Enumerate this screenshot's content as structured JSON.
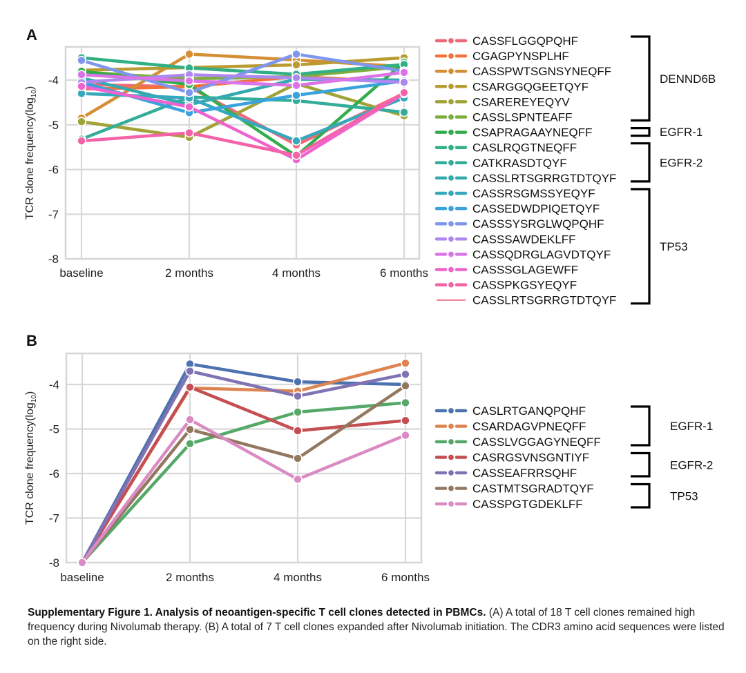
{
  "caption": {
    "bold": "Supplementary Figure 1. Analysis of neoantigen-specific T cell clones detected in PBMCs.",
    "text": " (A) A total of 18 T cell clones remained high frequency during Nivolumab therapy. (B) A total of 7 T cell clones expanded after Nivolumab initiation. The CDR3 amino acid sequences were listed on the right side."
  },
  "chart_data": [
    {
      "panel": "A",
      "type": "line",
      "title": "",
      "xlabel": "",
      "ylabel": "TCR clone frequency(log10)",
      "categories": [
        "baseline",
        "2 months",
        "4 months",
        "6 months"
      ],
      "yticks": [
        -4,
        -5,
        -6,
        -7,
        -8
      ],
      "ylim": [
        -8,
        -3.25
      ],
      "grid": true,
      "legend_position": "right",
      "series": [
        {
          "name": "CASSFLGGQPQHF",
          "color": "#f0697a",
          "group": "DENND6B",
          "values": [
            -4.1,
            -4.15,
            -5.45,
            -4.3
          ]
        },
        {
          "name": "CGAGPYNSPLHF",
          "color": "#f2733a",
          "group": "DENND6B",
          "values": [
            -4.2,
            -4.15,
            -3.92,
            -4.05
          ]
        },
        {
          "name": "CASSPWTSGNSYNEQFF",
          "color": "#d68e35",
          "group": "DENND6B",
          "values": [
            -4.85,
            -3.42,
            -3.55,
            -3.7
          ]
        },
        {
          "name": "CSARGGQGEETQYF",
          "color": "#b99b32",
          "group": "DENND6B",
          "values": [
            -3.78,
            -3.72,
            -3.66,
            -3.5
          ]
        },
        {
          "name": "CSAREREYEQYV",
          "color": "#a1a336",
          "group": "DENND6B",
          "values": [
            -4.93,
            -5.28,
            -4.08,
            -4.8
          ]
        },
        {
          "name": "CASSLSPNTEAFF",
          "color": "#7fad3c",
          "group": "DENND6B",
          "values": [
            -3.82,
            -3.97,
            -3.92,
            -3.7
          ]
        },
        {
          "name": "CSAPRAGAAYNEQFF",
          "color": "#33ad4c",
          "group": "EGFR-1",
          "values": [
            -3.8,
            -4.1,
            -5.7,
            -3.6
          ]
        },
        {
          "name": "CASLRQGTNEQFF",
          "color": "#32b085",
          "group": "EGFR-2",
          "values": [
            -3.5,
            -3.73,
            -3.87,
            -3.65
          ]
        },
        {
          "name": "CATKRASDTQYF",
          "color": "#33ad9a",
          "group": "EGFR-2",
          "values": [
            -5.32,
            -4.38,
            -4.46,
            -4.72
          ]
        },
        {
          "name": "CASSLRTSGRRGTDTQYF",
          "color": "#35aaae",
          "group": "EGFR-2",
          "values": [
            -3.95,
            -4.55,
            -3.98,
            -4.0
          ]
        },
        {
          "name": "CASSRSGMSSYEQYF",
          "color": "#36a8bd",
          "group": "TP53",
          "values": [
            -4.3,
            -4.4,
            -5.36,
            -4.4
          ]
        },
        {
          "name": "CASSEDWDPIQETQYF",
          "color": "#3aa2dc",
          "group": "TP53",
          "values": [
            -4.05,
            -4.73,
            -4.34,
            -4.02
          ]
        },
        {
          "name": "CASSSYSRGLWQPQHF",
          "color": "#7f96ee",
          "group": "TP53",
          "values": [
            -3.56,
            -4.28,
            -3.42,
            -3.8
          ]
        },
        {
          "name": "CASSSAWDEKLFF",
          "color": "#ad88ee",
          "group": "TP53",
          "values": [
            -4.05,
            -3.88,
            -3.95,
            -4.05
          ]
        },
        {
          "name": "CASSQDRGLAGVDTQYF",
          "color": "#da74e8",
          "group": "TP53",
          "values": [
            -3.88,
            -4.02,
            -4.12,
            -3.83
          ]
        },
        {
          "name": "CASSSGLAGEWFF",
          "color": "#ee63cf",
          "group": "TP53",
          "values": [
            -4.14,
            -4.6,
            -5.78,
            -4.3
          ]
        },
        {
          "name": "CASSPKGSYEQYF",
          "color": "#f462a8",
          "group": "TP53",
          "values": [
            -5.36,
            -5.18,
            -5.68,
            -4.28
          ]
        },
        {
          "name": "CASSLRTSGRRGTDTQYF",
          "color": "#f06d80",
          "group": "TP53",
          "values": [],
          "legend_style": "line"
        }
      ],
      "groups": [
        {
          "label": "DENND6B",
          "first": 0,
          "last": 5
        },
        {
          "label": "EGFR-1",
          "first": 6,
          "last": 6
        },
        {
          "label": "EGFR-2",
          "first": 7,
          "last": 9
        },
        {
          "label": "TP53",
          "first": 10,
          "last": 17
        }
      ]
    },
    {
      "panel": "B",
      "type": "line",
      "title": "",
      "xlabel": "",
      "ylabel": "TCR clone frequency(log10)",
      "categories": [
        "baseline",
        "2 months",
        "4 months",
        "6 months"
      ],
      "yticks": [
        -4,
        -5,
        -6,
        -7,
        -8
      ],
      "ylim": [
        -8,
        -3.3
      ],
      "grid": true,
      "legend_position": "right",
      "series": [
        {
          "name": "CASLRTGANQPQHF",
          "color": "#4c72b0",
          "group": "EGFR-1",
          "values": [
            -8,
            -3.54,
            -3.94,
            -4.0
          ]
        },
        {
          "name": "CSARDAGVPNEQFF",
          "color": "#dd8452",
          "group": "EGFR-1",
          "values": [
            -8,
            -4.08,
            -4.15,
            -3.52
          ]
        },
        {
          "name": "CASSLVGGAGYNEQFF",
          "color": "#55a868",
          "group": "EGFR-1",
          "values": [
            -8,
            -5.33,
            -4.62,
            -4.41
          ]
        },
        {
          "name": "CASRGSVNSGNTIYF",
          "color": "#c44e52",
          "group": "EGFR-2",
          "values": [
            -8,
            -4.06,
            -5.04,
            -4.81
          ]
        },
        {
          "name": "CASSEAFRRSQHF",
          "color": "#8172b3",
          "group": "EGFR-2",
          "values": [
            -8,
            -3.7,
            -4.26,
            -3.77
          ]
        },
        {
          "name": "CASTMTSGRADTQYF",
          "color": "#937860",
          "group": "TP53",
          "values": [
            -8,
            -5.01,
            -5.66,
            -4.03
          ]
        },
        {
          "name": "CASSPGTGDEKLFF",
          "color": "#da8bc3",
          "group": "TP53",
          "values": [
            -8,
            -4.79,
            -6.13,
            -5.14
          ]
        }
      ],
      "groups": [
        {
          "label": "EGFR-1",
          "first": 0,
          "last": 2
        },
        {
          "label": "EGFR-2",
          "first": 3,
          "last": 4
        },
        {
          "label": "TP53",
          "first": 5,
          "last": 6
        }
      ]
    }
  ]
}
